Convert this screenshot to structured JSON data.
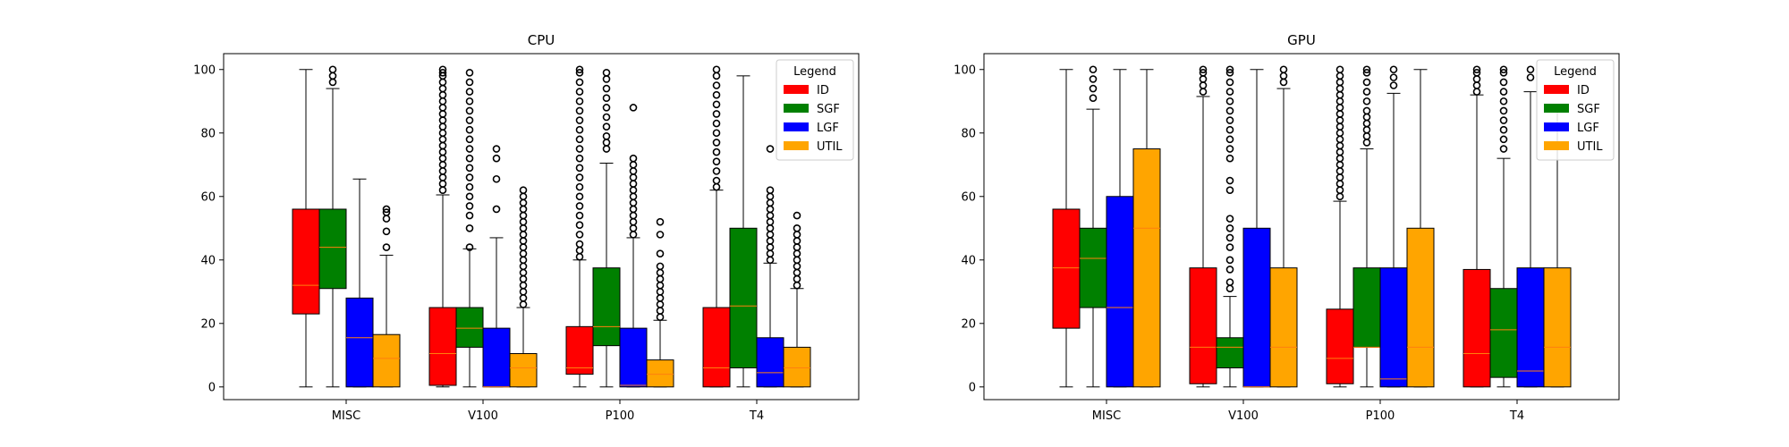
{
  "chart_data": [
    {
      "type": "box",
      "title": "CPU",
      "categories": [
        "MISC",
        "V100",
        "P100",
        "T4"
      ],
      "yticks": [
        0,
        20,
        40,
        60,
        80,
        100
      ],
      "ylim": [
        -4,
        105
      ],
      "legend": {
        "title": "Legend",
        "placement": "top-right"
      },
      "series": [
        {
          "name": "ID",
          "color": "#ff0000",
          "boxes": [
            {
              "whislo": 0,
              "q1": 23,
              "med": 32,
              "q3": 56,
              "whishi": 100,
              "fliers": []
            },
            {
              "whislo": 0,
              "q1": 0.5,
              "med": 10.5,
              "q3": 25,
              "whishi": 60.5,
              "fliers": [
                62,
                64,
                66,
                68,
                70,
                72,
                74,
                76,
                78,
                80,
                82,
                84,
                86,
                88,
                90,
                92,
                94,
                96,
                98,
                99,
                100
              ]
            },
            {
              "whislo": 0,
              "q1": 4,
              "med": 6,
              "q3": 19,
              "whishi": 40,
              "fliers": [
                41,
                43,
                45,
                48,
                51,
                54,
                57,
                60,
                63,
                66,
                69,
                72,
                75,
                78,
                81,
                84,
                87,
                90,
                93,
                96,
                99,
                100
              ]
            },
            {
              "whislo": 0,
              "q1": 0,
              "med": 6,
              "q3": 25,
              "whishi": 62,
              "fliers": [
                63,
                65,
                68,
                71,
                74,
                77,
                80,
                83,
                86,
                89,
                92,
                95,
                98,
                100
              ]
            }
          ]
        },
        {
          "name": "SGF",
          "color": "#008000",
          "boxes": [
            {
              "whislo": 0,
              "q1": 31,
              "med": 44,
              "q3": 56,
              "whishi": 94,
              "fliers": [
                96,
                98,
                100
              ]
            },
            {
              "whislo": 0,
              "q1": 12.5,
              "med": 18.5,
              "q3": 25,
              "whishi": 43.5,
              "fliers": [
                44,
                50,
                54,
                57,
                60,
                63,
                66,
                69,
                72,
                75,
                78,
                81,
                84,
                87,
                90,
                93,
                96,
                99
              ]
            },
            {
              "whislo": 0,
              "q1": 13,
              "med": 19,
              "q3": 37.5,
              "whishi": 70.5,
              "fliers": [
                75,
                77,
                79,
                82,
                85,
                88,
                91,
                94,
                97,
                99
              ]
            },
            {
              "whislo": 0,
              "q1": 6,
              "med": 25.5,
              "q3": 50,
              "whishi": 98,
              "fliers": []
            }
          ]
        },
        {
          "name": "LGF",
          "color": "#0000ff",
          "boxes": [
            {
              "whislo": 0,
              "q1": 0,
              "med": 15.5,
              "q3": 28,
              "whishi": 65.5,
              "fliers": []
            },
            {
              "whislo": 0,
              "q1": 0,
              "med": 0,
              "q3": 18.5,
              "whishi": 47,
              "fliers": [
                56,
                65.5,
                72,
                75
              ]
            },
            {
              "whislo": 0,
              "q1": 0,
              "med": 0.5,
              "q3": 18.5,
              "whishi": 47,
              "fliers": [
                48,
                50,
                52,
                54,
                56,
                58,
                60,
                62,
                64,
                66,
                68,
                70,
                72,
                88
              ]
            },
            {
              "whislo": 0,
              "q1": 0,
              "med": 4.5,
              "q3": 15.5,
              "whishi": 39,
              "fliers": [
                40,
                42,
                44,
                46,
                48,
                50,
                52,
                54,
                56,
                58,
                60,
                62,
                75
              ]
            }
          ]
        },
        {
          "name": "UTIL",
          "color": "#ffa500",
          "boxes": [
            {
              "whislo": 0,
              "q1": 0,
              "med": 9,
              "q3": 16.5,
              "whishi": 41.5,
              "fliers": [
                44,
                49,
                53,
                55,
                56
              ]
            },
            {
              "whislo": 0,
              "q1": 0,
              "med": 6,
              "q3": 10.5,
              "whishi": 25,
              "fliers": [
                26,
                28,
                30,
                32,
                34,
                36,
                38,
                40,
                42,
                44,
                46,
                48,
                50,
                52,
                54,
                56,
                58,
                60,
                62
              ]
            },
            {
              "whislo": 0,
              "q1": 0,
              "med": 4,
              "q3": 8.5,
              "whishi": 21,
              "fliers": [
                22,
                24,
                26,
                28,
                30,
                32,
                34,
                36,
                38,
                42,
                48,
                52
              ]
            },
            {
              "whislo": 0,
              "q1": 0,
              "med": 6,
              "q3": 12.5,
              "whishi": 31,
              "fliers": [
                32,
                34,
                36,
                38,
                40,
                42,
                44,
                46,
                48,
                50,
                54
              ]
            }
          ]
        }
      ]
    },
    {
      "type": "box",
      "title": "GPU",
      "categories": [
        "MISC",
        "V100",
        "P100",
        "T4"
      ],
      "yticks": [
        0,
        20,
        40,
        60,
        80,
        100
      ],
      "ylim": [
        -4,
        105
      ],
      "legend": {
        "title": "Legend",
        "placement": "top-right"
      },
      "series": [
        {
          "name": "ID",
          "color": "#ff0000",
          "boxes": [
            {
              "whislo": 0,
              "q1": 18.5,
              "med": 37.5,
              "q3": 56,
              "whishi": 100,
              "fliers": []
            },
            {
              "whislo": 0,
              "q1": 1,
              "med": 12.5,
              "q3": 37.5,
              "whishi": 91.5,
              "fliers": [
                93,
                95,
                97,
                99,
                100
              ]
            },
            {
              "whislo": 0,
              "q1": 1,
              "med": 9,
              "q3": 24.5,
              "whishi": 58.5,
              "fliers": [
                60,
                62,
                64,
                66,
                68,
                70,
                72,
                74,
                76,
                78,
                80,
                82,
                84,
                86,
                88,
                90,
                92,
                94,
                96,
                98,
                100
              ]
            },
            {
              "whislo": 0,
              "q1": 0,
              "med": 10.5,
              "q3": 37,
              "whishi": 92,
              "fliers": [
                93,
                95,
                97,
                99,
                100
              ]
            }
          ]
        },
        {
          "name": "SGF",
          "color": "#008000",
          "boxes": [
            {
              "whislo": 0,
              "q1": 25,
              "med": 40.5,
              "q3": 50,
              "whishi": 87.5,
              "fliers": [
                91,
                94,
                97,
                100
              ]
            },
            {
              "whislo": 0,
              "q1": 6,
              "med": 12.5,
              "q3": 15.5,
              "whishi": 28.5,
              "fliers": [
                31,
                33,
                37,
                40,
                44,
                47,
                50,
                53,
                62,
                65,
                72,
                75,
                78,
                81,
                84,
                87,
                90,
                93,
                96,
                99,
                100
              ]
            },
            {
              "whislo": 0,
              "q1": 12.5,
              "med": 12.5,
              "q3": 37.5,
              "whishi": 75,
              "fliers": [
                77,
                79,
                81,
                83,
                85,
                87,
                90,
                93,
                96,
                99,
                100
              ]
            },
            {
              "whislo": 0,
              "q1": 3,
              "med": 18,
              "q3": 31,
              "whishi": 72,
              "fliers": [
                75,
                78,
                81,
                84,
                87,
                90,
                93,
                96,
                99,
                100
              ]
            }
          ]
        },
        {
          "name": "LGF",
          "color": "#0000ff",
          "boxes": [
            {
              "whislo": 0,
              "q1": 0,
              "med": 25,
              "q3": 60,
              "whishi": 100,
              "fliers": []
            },
            {
              "whislo": 0,
              "q1": 0,
              "med": 0,
              "q3": 50,
              "whishi": 100,
              "fliers": []
            },
            {
              "whislo": 0,
              "q1": 0,
              "med": 2.5,
              "q3": 37.5,
              "whishi": 92.5,
              "fliers": [
                95,
                97.5,
                100
              ]
            },
            {
              "whislo": 0,
              "q1": 0,
              "med": 5,
              "q3": 37.5,
              "whishi": 93,
              "fliers": [
                97.5,
                100
              ]
            }
          ]
        },
        {
          "name": "UTIL",
          "color": "#ffa500",
          "boxes": [
            {
              "whislo": 0,
              "q1": 0,
              "med": 50,
              "q3": 75,
              "whishi": 100,
              "fliers": []
            },
            {
              "whislo": 0,
              "q1": 0,
              "med": 12.5,
              "q3": 37.5,
              "whishi": 94,
              "fliers": [
                96,
                98,
                100
              ]
            },
            {
              "whislo": 0,
              "q1": 0,
              "med": 12.5,
              "q3": 50,
              "whishi": 100,
              "fliers": []
            },
            {
              "whislo": 0,
              "q1": 0,
              "med": 12.5,
              "q3": 37.5,
              "whishi": 87.5,
              "fliers": []
            }
          ]
        }
      ]
    }
  ]
}
